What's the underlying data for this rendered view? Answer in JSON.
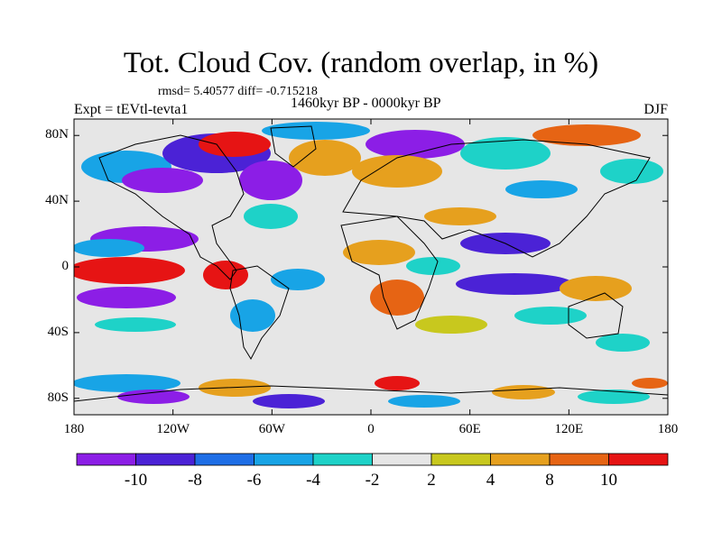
{
  "title": "Tot. Cloud Cov. (random overlap, in %)",
  "stats": "rmsd= 5.40577 diff= -0.715218",
  "experiment": "Expt = tEVtl-tevta1",
  "period": "1460kyr BP - 0000kyr BP",
  "season": "DJF",
  "lat_labels": [
    "80N",
    "40N",
    "0",
    "40S",
    "80S"
  ],
  "lat_values": [
    80,
    40,
    0,
    -40,
    -80
  ],
  "lon_labels": [
    "180",
    "120W",
    "60W",
    "0",
    "60E",
    "120E",
    "180"
  ],
  "lon_values": [
    -180,
    -120,
    -60,
    0,
    60,
    120,
    180
  ],
  "colorbar": {
    "labels": [
      "-10",
      "-8",
      "-6",
      "-4",
      "-2",
      "2",
      "4",
      "8",
      "10"
    ],
    "colors": [
      "#8c1ee6",
      "#4b22d6",
      "#1e6ee6",
      "#18a4e6",
      "#1ed2c8",
      "#e6e6e6",
      "#c8c81e",
      "#e6a01e",
      "#e66414",
      "#e61414"
    ]
  }
}
